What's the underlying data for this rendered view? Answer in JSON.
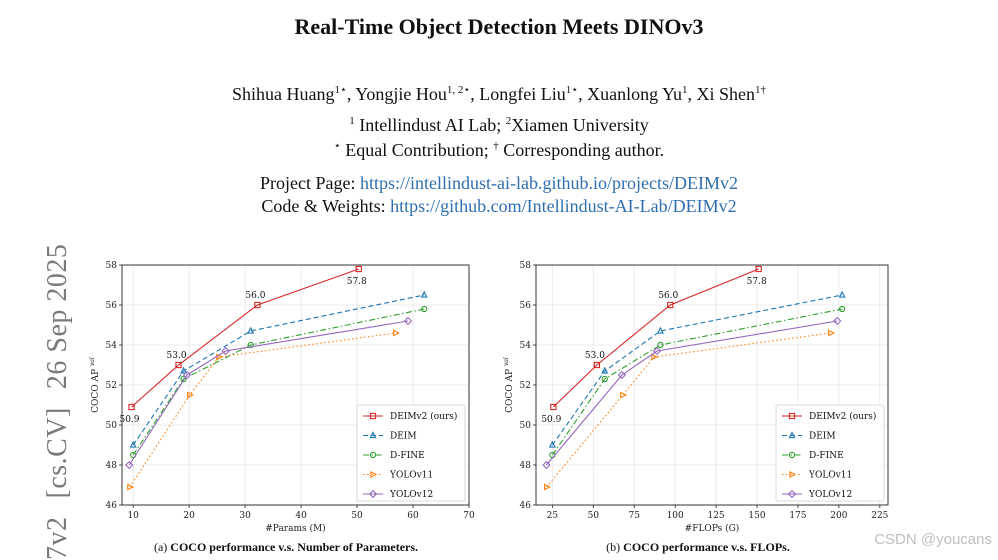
{
  "paper": {
    "title": "Real-Time Object Detection Meets DINOv3",
    "authors": [
      {
        "name": "Shihua Huang",
        "sup": "1⋆"
      },
      {
        "name": "Yongjie Hou",
        "sup": "1, 2⋆"
      },
      {
        "name": "Longfei Liu",
        "sup": "1⋆"
      },
      {
        "name": "Xuanlong Yu",
        "sup": "1"
      },
      {
        "name": "Xi Shen",
        "sup": "1†"
      }
    ],
    "affiliations": {
      "sup1": "1",
      "aff1": " Intellindust AI Lab; ",
      "sup2": "2",
      "aff2": "Xiamen University"
    },
    "notes": {
      "sup1": "⋆",
      "text1": " Equal Contribution; ",
      "sup2": "†",
      "text2": " Corresponding author."
    },
    "project_label": "Project Page: ",
    "project_url": "https://intellindust-ai-lab.github.io/projects/DEIMv2",
    "code_label": "Code & Weights: ",
    "code_url": "https://github.com/Intellindust-AI-Lab/DEIMv2",
    "arxiv": {
      "id_fragment": "7v2",
      "category": "[cs.CV]",
      "date": "26 Sep 2025"
    },
    "captions": [
      {
        "prefix": "(a) ",
        "text": "COCO performance v.s. Number of Parameters."
      },
      {
        "prefix": "(b) ",
        "text": "COCO performance v.s. FLOPs."
      }
    ],
    "watermark": "CSDN @youcans"
  },
  "chart_data": [
    {
      "type": "line",
      "xlabel": "#Params (M)",
      "ylabel": "COCO AP",
      "ylabel_sup": "val",
      "xlim": [
        8,
        70
      ],
      "ylim": [
        46,
        58
      ],
      "xticks": [
        10,
        20,
        30,
        40,
        50,
        60,
        70
      ],
      "yticks": [
        46,
        48,
        50,
        52,
        54,
        56,
        58
      ],
      "grid": true,
      "legend_position": "bottom-right",
      "series": [
        {
          "name": "DEIMv2 (ours)",
          "color": "#d62728",
          "marker": "square",
          "dash": "solid",
          "points": [
            [
              9.7,
              50.9
            ],
            [
              18.1,
              53.0
            ],
            [
              32.2,
              56.0
            ],
            [
              50.3,
              57.8
            ]
          ]
        },
        {
          "name": "DEIM",
          "color": "#1f77b4",
          "marker": "triangle",
          "dash": "dashed",
          "points": [
            [
              10,
              49.0
            ],
            [
              19,
              52.7
            ],
            [
              31,
              54.7
            ],
            [
              62,
              56.5
            ]
          ]
        },
        {
          "name": "D-FINE",
          "color": "#2ca02c",
          "marker": "circle",
          "dash": "dashdot",
          "points": [
            [
              10,
              48.5
            ],
            [
              19,
              52.3
            ],
            [
              31,
              54.0
            ],
            [
              62,
              55.8
            ]
          ]
        },
        {
          "name": "YOLOv11",
          "color": "#ff7f0e",
          "marker": "triangle-right",
          "dash": "dotted",
          "points": [
            [
              9.4,
              46.9
            ],
            [
              20.1,
              51.5
            ],
            [
              25.3,
              53.4
            ],
            [
              56.9,
              54.6
            ]
          ]
        },
        {
          "name": "YOLOv12",
          "color": "#9467bd",
          "marker": "diamond",
          "dash": "solid",
          "points": [
            [
              9.3,
              48.0
            ],
            [
              19.6,
              52.5
            ],
            [
              26.5,
              53.7
            ],
            [
              59.1,
              55.2
            ]
          ]
        }
      ],
      "annotations": [
        {
          "text": "50.9",
          "x": 9.7,
          "y": 50.9,
          "pos": "below"
        },
        {
          "text": "53.0",
          "x": 18.1,
          "y": 53.0,
          "pos": "above"
        },
        {
          "text": "56.0",
          "x": 32.2,
          "y": 56.0,
          "pos": "above"
        },
        {
          "text": "57.8",
          "x": 50.3,
          "y": 57.8,
          "pos": "below"
        }
      ]
    },
    {
      "type": "line",
      "xlabel": "#FLOPs (G)",
      "ylabel": "COCO AP",
      "ylabel_sup": "val",
      "xlim": [
        15,
        230
      ],
      "ylim": [
        46,
        58
      ],
      "xticks": [
        25,
        50,
        75,
        100,
        125,
        150,
        175,
        200,
        225
      ],
      "yticks": [
        46,
        48,
        50,
        52,
        54,
        56,
        58
      ],
      "grid": true,
      "legend_position": "bottom-right",
      "series": [
        {
          "name": "DEIMv2 (ours)",
          "color": "#d62728",
          "marker": "square",
          "dash": "solid",
          "points": [
            [
              25.6,
              50.9
            ],
            [
              52.2,
              53.0
            ],
            [
              97.0,
              56.0
            ],
            [
              151.0,
              57.8
            ]
          ]
        },
        {
          "name": "DEIM",
          "color": "#1f77b4",
          "marker": "triangle",
          "dash": "dashed",
          "points": [
            [
              25,
              49.0
            ],
            [
              57,
              52.7
            ],
            [
              91,
              54.7
            ],
            [
              202,
              56.5
            ]
          ]
        },
        {
          "name": "D-FINE",
          "color": "#2ca02c",
          "marker": "circle",
          "dash": "dashdot",
          "points": [
            [
              25,
              48.5
            ],
            [
              57,
              52.3
            ],
            [
              91,
              54.0
            ],
            [
              202,
              55.8
            ]
          ]
        },
        {
          "name": "YOLOv11",
          "color": "#ff7f0e",
          "marker": "triangle-right",
          "dash": "dotted",
          "points": [
            [
              21.5,
              46.9
            ],
            [
              68.0,
              51.5
            ],
            [
              87.0,
              53.4
            ],
            [
              195.0,
              54.6
            ]
          ]
        },
        {
          "name": "YOLOv12",
          "color": "#9467bd",
          "marker": "diamond",
          "dash": "solid",
          "points": [
            [
              21.4,
              48.0
            ],
            [
              67.5,
              52.5
            ],
            [
              88.9,
              53.7
            ],
            [
              199.0,
              55.2
            ]
          ]
        }
      ],
      "annotations": [
        {
          "text": "50.9",
          "x": 25.6,
          "y": 50.9,
          "pos": "below"
        },
        {
          "text": "53.0",
          "x": 52.2,
          "y": 53.0,
          "pos": "above"
        },
        {
          "text": "56.0",
          "x": 97.0,
          "y": 56.0,
          "pos": "above"
        },
        {
          "text": "57.8",
          "x": 151.0,
          "y": 57.8,
          "pos": "below"
        }
      ]
    }
  ]
}
